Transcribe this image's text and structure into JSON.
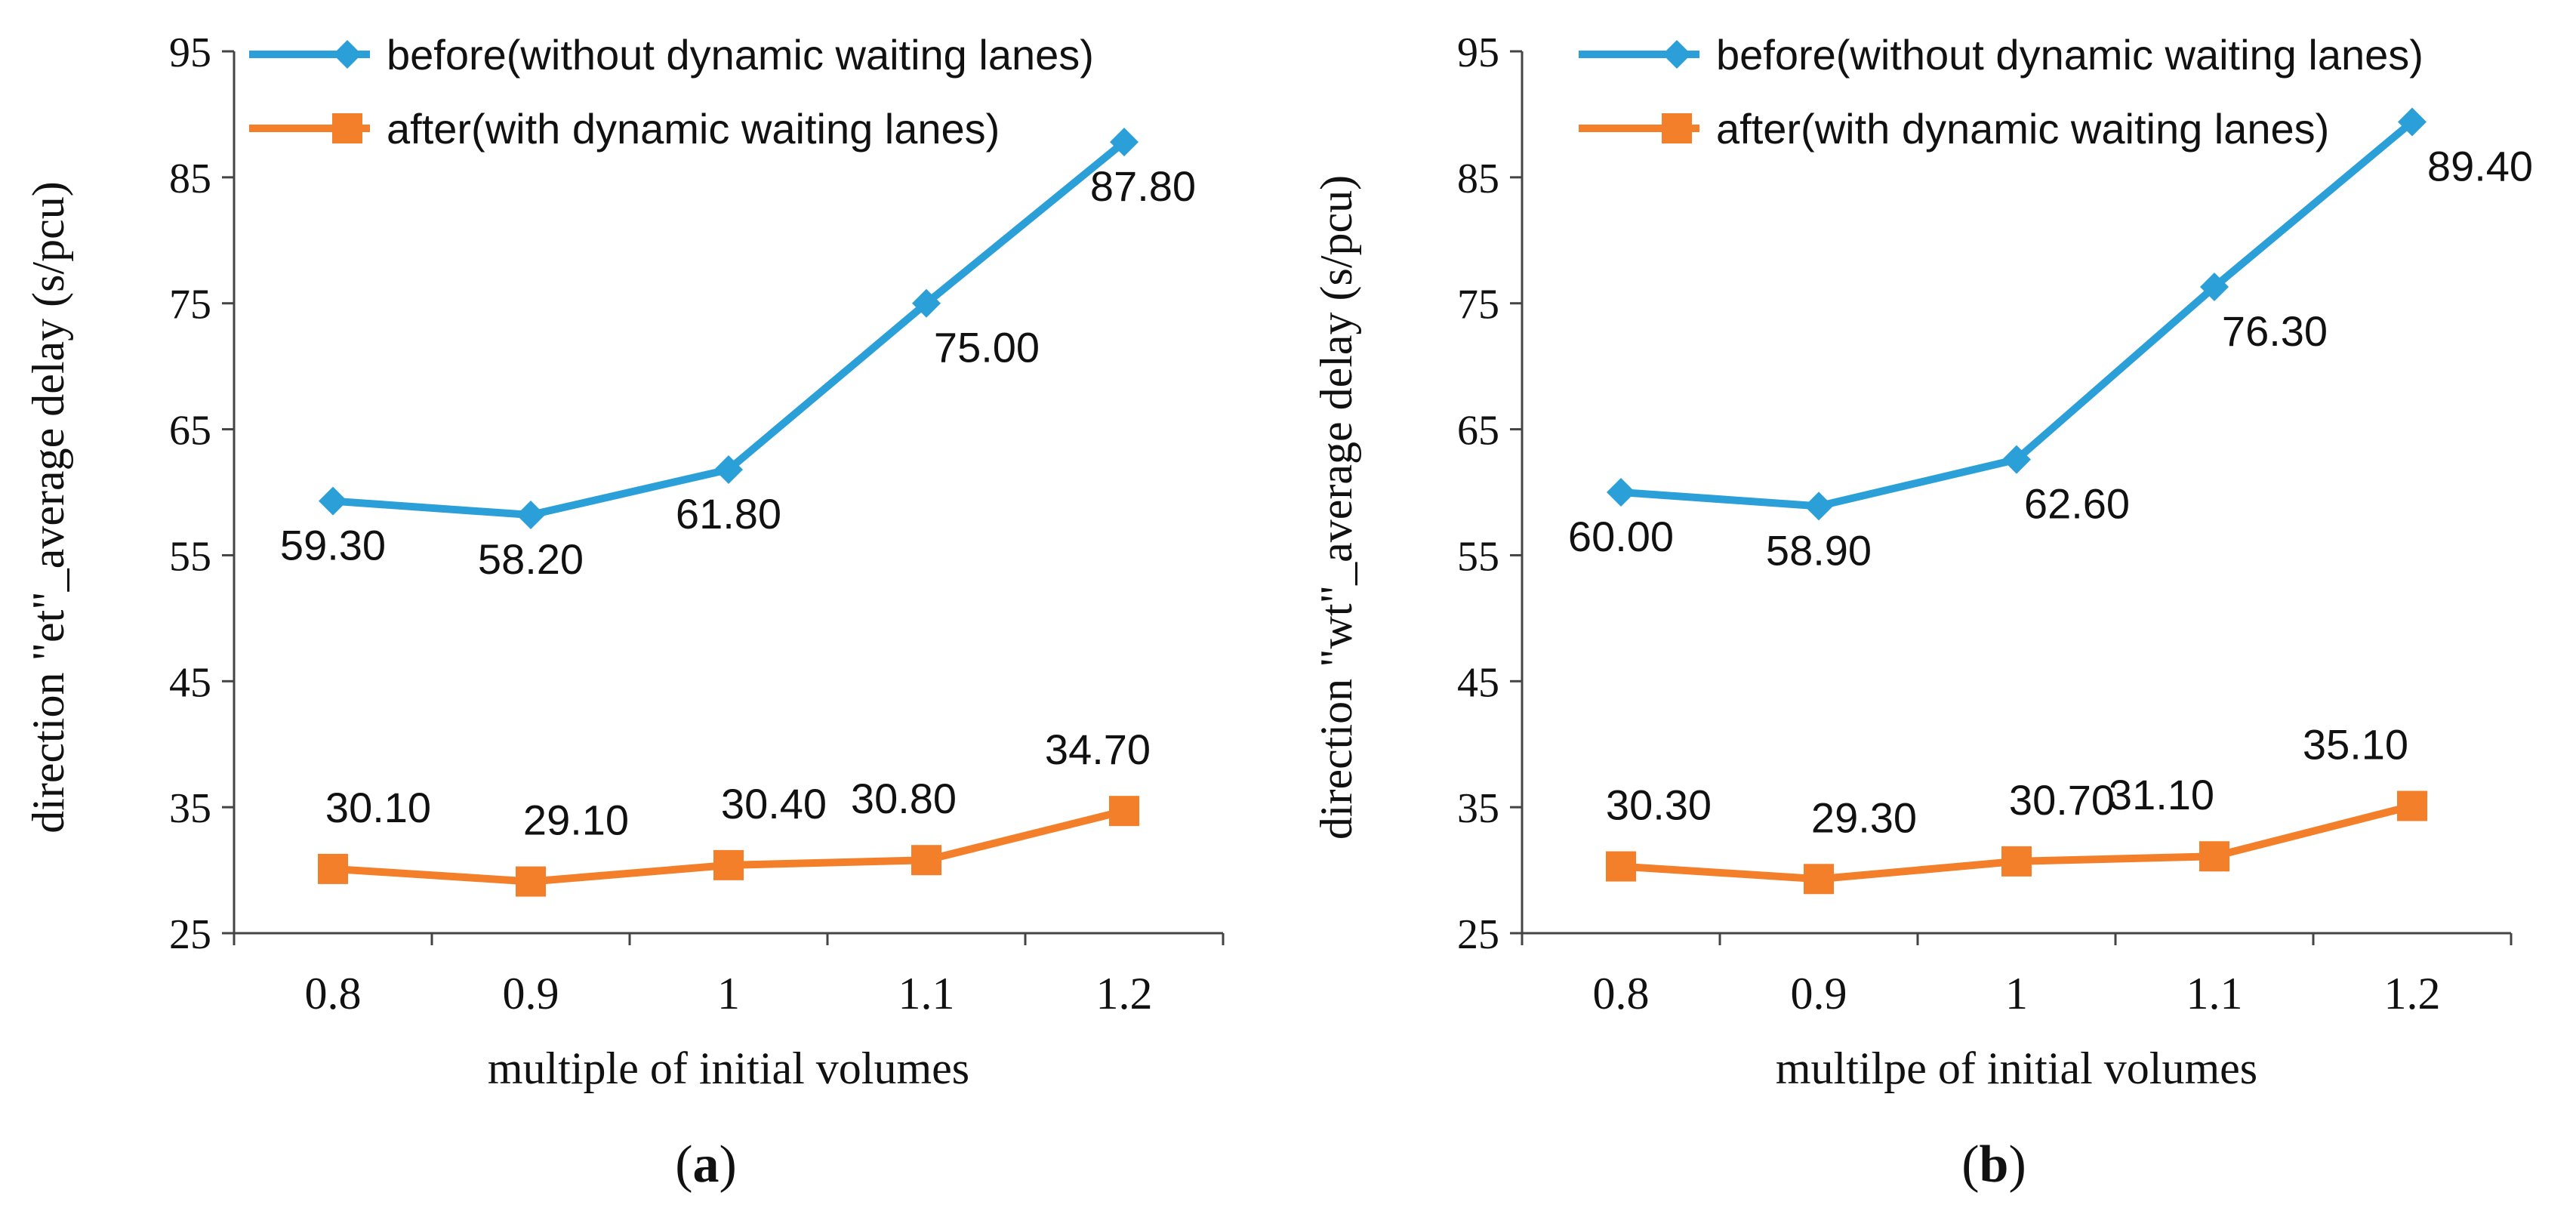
{
  "chart_data": [
    {
      "type": "line",
      "panel_label": "a",
      "categories": [
        "0.8",
        "0.9",
        "1",
        "1.1",
        "1.2"
      ],
      "series": [
        {
          "name": "before(without dynamic waiting lanes)",
          "color": "#2a9fd8",
          "marker": "diamond",
          "values": [
            59.3,
            58.2,
            61.8,
            75.0,
            87.8
          ],
          "labels": [
            "59.30",
            "58.20",
            "61.80",
            "75.00",
            "87.80"
          ]
        },
        {
          "name": "after(with dynamic waiting lanes)",
          "color": "#f47f2a",
          "marker": "square",
          "values": [
            30.1,
            29.1,
            30.4,
            30.8,
            34.7
          ],
          "labels": [
            "30.10",
            "29.10",
            "30.40",
            "30.80",
            "34.70"
          ]
        }
      ],
      "xlabel": "multiple of initial volumes",
      "ylabel": "direction \"et\"_average delay (s/pcu)",
      "ylim": [
        25,
        95
      ],
      "yticks": [
        25,
        35,
        45,
        55,
        65,
        75,
        85,
        95
      ],
      "grid": false,
      "legend": "top-left"
    },
    {
      "type": "line",
      "panel_label": "b",
      "categories": [
        "0.8",
        "0.9",
        "1",
        "1.1",
        "1.2"
      ],
      "series": [
        {
          "name": "before(without dynamic waiting lanes)",
          "color": "#2a9fd8",
          "marker": "diamond",
          "values": [
            60.0,
            58.9,
            62.6,
            76.3,
            89.4
          ],
          "labels": [
            "60.00",
            "58.90",
            "62.60",
            "76.30",
            "89.40"
          ]
        },
        {
          "name": "after(with dynamic waiting lanes)",
          "color": "#f47f2a",
          "marker": "square",
          "values": [
            30.3,
            29.3,
            30.7,
            31.1,
            35.1
          ],
          "labels": [
            "30.30",
            "29.30",
            "30.70",
            "31.10",
            "35.10"
          ]
        }
      ],
      "xlabel": "multilpe of initial volumes",
      "ylabel": "direction \"wt\"_average delay (s/pcu)",
      "ylim": [
        25,
        95
      ],
      "yticks": [
        25,
        35,
        45,
        55,
        65,
        75,
        85,
        95
      ],
      "grid": false,
      "legend": "top-left"
    }
  ]
}
